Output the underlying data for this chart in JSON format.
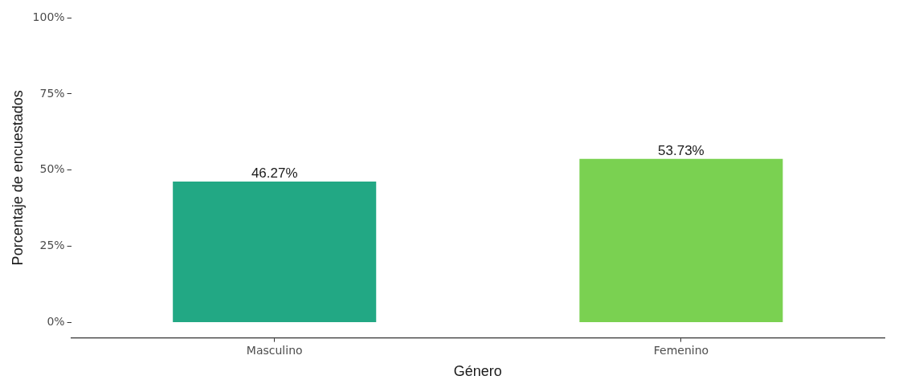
{
  "chart_data": {
    "type": "bar",
    "xlabel": "Género",
    "ylabel": "Porcentaje de encuestados",
    "categories": [
      "Masculino",
      "Femenino"
    ],
    "values": [
      46.27,
      53.73
    ],
    "colors": [
      "#22a884",
      "#7ad151"
    ],
    "value_labels": [
      "46.27%",
      "53.73%"
    ],
    "ylim": [
      -5,
      100
    ],
    "yticks": [
      {
        "value": 0,
        "label": "0%"
      },
      {
        "value": 25,
        "label": "25%"
      },
      {
        "value": 50,
        "label": "50%"
      },
      {
        "value": 75,
        "label": "75%"
      },
      {
        "value": 100,
        "label": "100%"
      }
    ],
    "grid": false,
    "legend": false
  }
}
